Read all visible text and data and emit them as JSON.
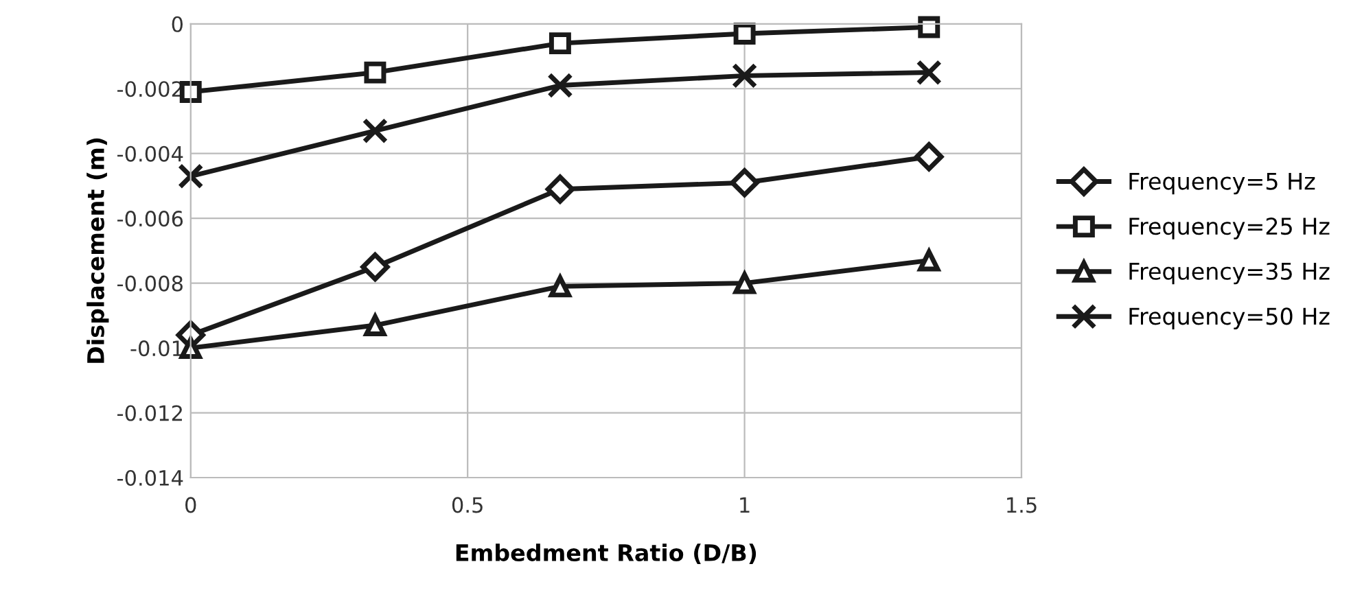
{
  "chart_data": {
    "type": "line",
    "xlabel": "Embedment Ratio (D/B)",
    "ylabel": "Displacement (m)",
    "x": [
      0,
      0.333,
      0.667,
      1,
      1.333
    ],
    "xlim": [
      0,
      1.5
    ],
    "xticks": [
      0,
      0.5,
      1,
      1.5
    ],
    "ylim": [
      -0.014,
      0
    ],
    "yticks": [
      -0.014,
      -0.012,
      -0.01,
      -0.008,
      -0.006,
      -0.004,
      -0.002,
      0
    ],
    "grid": true,
    "legend": "right",
    "line_style": "solid",
    "series": [
      {
        "name": "Frequency=5 Hz",
        "color": "#1a1a1a",
        "marker": "diamond",
        "values": [
          -0.0096,
          -0.0075,
          -0.0051,
          -0.0049,
          -0.0041
        ]
      },
      {
        "name": "Frequency=25 Hz",
        "color": "#1a1a1a",
        "marker": "square",
        "values": [
          -0.0021,
          -0.0015,
          -0.0006,
          -0.0003,
          -0.0001
        ]
      },
      {
        "name": "Frequency=35 Hz",
        "color": "#1a1a1a",
        "marker": "triangle",
        "values": [
          -0.01,
          -0.0093,
          -0.0081,
          -0.008,
          -0.0073
        ]
      },
      {
        "name": "Frequency=50 Hz",
        "color": "#1a1a1a",
        "marker": "cross",
        "values": [
          -0.0047,
          -0.0033,
          -0.0019,
          -0.0016,
          -0.0015
        ]
      }
    ]
  }
}
